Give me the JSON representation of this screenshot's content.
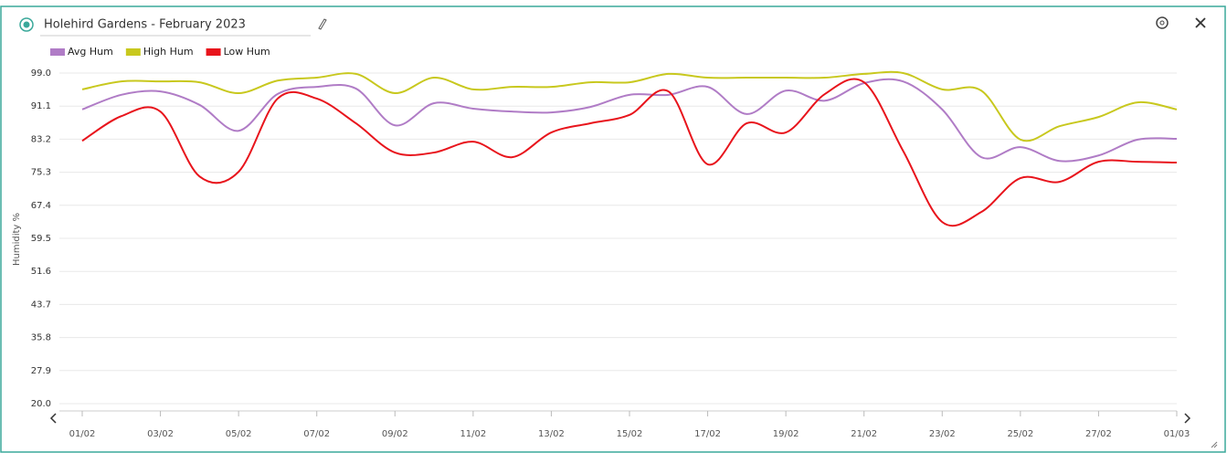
{
  "chart_data": {
    "type": "line",
    "title": "Holehird Gardens - February 2023",
    "y_label": "Humidity %",
    "categories": [
      "01/02",
      null,
      "03/02",
      null,
      "05/02",
      null,
      "07/02",
      null,
      "09/02",
      null,
      "11/02",
      null,
      "13/02",
      null,
      "15/02",
      null,
      "17/02",
      null,
      "19/02",
      null,
      "21/02",
      null,
      "23/02",
      null,
      "25/02",
      null,
      "27/02",
      null,
      "01/03"
    ],
    "series": [
      {
        "name": "Avg Hum",
        "color": "#b07cc6",
        "values": [
          90.3,
          93.8,
          94.6,
          91.4,
          85.2,
          94.0,
          95.7,
          95.3,
          86.5,
          91.8,
          90.5,
          89.8,
          89.6,
          90.9,
          93.8,
          93.8,
          95.7,
          89.2,
          94.8,
          92.4,
          96.6,
          97.0,
          90.3,
          78.9,
          81.3,
          78.0,
          79.3,
          83.1,
          83.3
        ]
      },
      {
        "name": "High Hum",
        "color": "#c8c81e",
        "values": [
          95.1,
          97.0,
          97.0,
          96.8,
          94.2,
          97.2,
          97.9,
          98.8,
          94.2,
          97.9,
          95.1,
          95.7,
          95.7,
          96.8,
          96.8,
          98.8,
          97.9,
          97.9,
          97.9,
          97.9,
          98.8,
          99.0,
          95.1,
          94.8,
          83.1,
          86.3,
          88.5,
          92.0,
          90.3
        ]
      },
      {
        "name": "Low Hum",
        "color": "#e8141c",
        "values": [
          82.8,
          88.7,
          89.8,
          74.3,
          75.4,
          92.9,
          92.9,
          87.0,
          80.0,
          80.0,
          82.6,
          78.9,
          84.8,
          87.0,
          89.0,
          94.6,
          77.2,
          87.0,
          84.8,
          94.0,
          96.8,
          80.4,
          63.4,
          65.8,
          73.9,
          73.0,
          77.8,
          77.8,
          77.6
        ]
      }
    ],
    "ylim": [
      20,
      99
    ],
    "yticks": [
      {
        "value": 20,
        "label": "20.0"
      },
      27.9,
      35.8,
      43.7,
      51.6,
      59.5,
      67.4,
      75.3,
      83.2,
      91.1,
      {
        "value": 99,
        "label": "99.0"
      }
    ],
    "grid": true,
    "legend": "top-left"
  }
}
